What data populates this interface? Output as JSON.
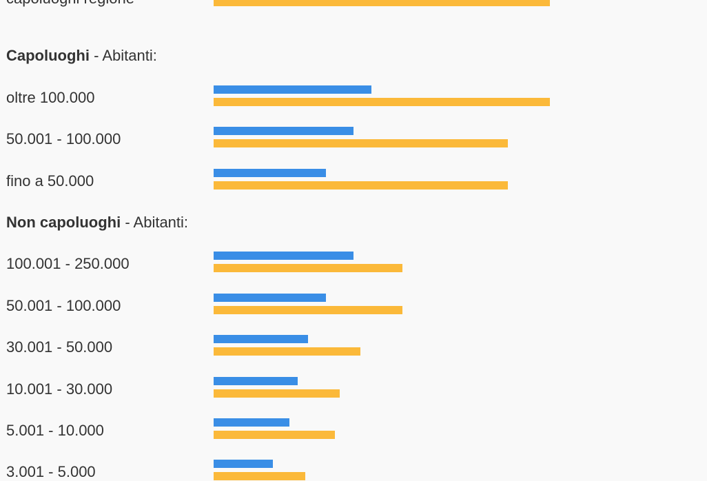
{
  "colors": {
    "series_blue": "#3a8ee6",
    "series_orange": "#fbb93a",
    "background": "#f9f9f9",
    "text": "#333333"
  },
  "chart_data": {
    "type": "bar",
    "orientation": "horizontal",
    "xlim": [
      0,
      100
    ],
    "grid": false,
    "legend": "none",
    "sections": [
      {
        "title_bold": "",
        "title_rest": "",
        "rows": [
          {
            "label": "capoluoghi regione",
            "blue": null,
            "orange": 100
          }
        ]
      },
      {
        "title_bold": "Capoluoghi",
        "title_rest": " - Abitanti:",
        "rows": [
          {
            "label": "oltre 100.000",
            "blue": 47,
            "orange": 100
          },
          {
            "label": "50.001 - 100.000",
            "blue": 41.6,
            "orange": 87.4
          },
          {
            "label": "fino a 50.000",
            "blue": 33.5,
            "orange": 87.4
          }
        ]
      },
      {
        "title_bold": "Non capoluoghi",
        "title_rest": " - Abitanti:",
        "rows": [
          {
            "label": "100.001 - 250.000",
            "blue": 41.6,
            "orange": 56.1
          },
          {
            "label": "50.001 - 100.000",
            "blue": 33.5,
            "orange": 56.1
          },
          {
            "label": "30.001 - 50.000",
            "blue": 28.1,
            "orange": 43.7
          },
          {
            "label": "10.001 - 30.000",
            "blue": 25.1,
            "orange": 37.4
          },
          {
            "label": "5.001 - 10.000",
            "blue": 22.6,
            "orange": 36.1
          },
          {
            "label": "3.001 - 5.000",
            "blue": 17.6,
            "orange": 27.3
          }
        ]
      }
    ]
  }
}
